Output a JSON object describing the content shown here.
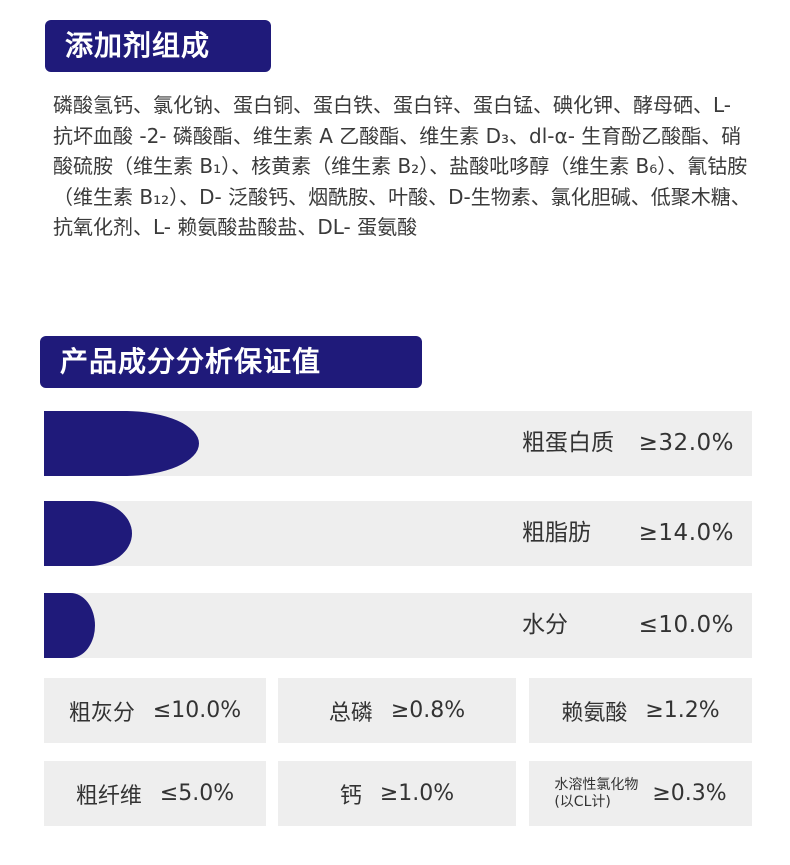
{
  "additives": {
    "title": "添加剂组成",
    "text": "磷酸氢钙、氯化钠、蛋白铜、蛋白铁、蛋白锌、蛋白锰、碘化钾、酵母硒、L- 抗坏血酸 -2- 磷酸酯、维生素 A 乙酸酯、维生素 D₃、dl-α- 生育酚乙酸酯、硝酸硫胺（维生素 B₁）、核黄素（维生素 B₂）、盐酸吡哆醇（维生素 B₆）、氰钴胺（维生素 B₁₂）、D- 泛酸钙、烟酰胺、叶酸、D-生物素、氯化胆碱、低聚木糖、抗氧化剂、L- 赖氨酸盐酸盐、DL- 蛋氨酸"
  },
  "analysis": {
    "title": "产品成分分析保证值",
    "bars": [
      {
        "name": "粗蛋白质",
        "value": "≥32.0%",
        "fill_percent": 21.9
      },
      {
        "name": "粗脂肪",
        "value": "≥14.0%",
        "fill_percent": 12.4
      },
      {
        "name": "水分",
        "value": "≤10.0%",
        "fill_percent": 7.2
      }
    ],
    "cells": [
      {
        "name": "粗灰分",
        "value": "≤10.0%"
      },
      {
        "name": "总磷",
        "value": "≥0.8%"
      },
      {
        "name": "赖氨酸",
        "value": "≥1.2%"
      },
      {
        "name": "粗纤维",
        "value": "≤5.0%"
      },
      {
        "name": "钙",
        "value": "≥1.0%"
      },
      {
        "name_line1": "水溶性氯化物",
        "name_line2": "(以CL计)",
        "value": "≥0.3%"
      }
    ]
  },
  "colors": {
    "accent": "#1f1a7a",
    "panel": "#eeeeee",
    "text": "#333333"
  }
}
